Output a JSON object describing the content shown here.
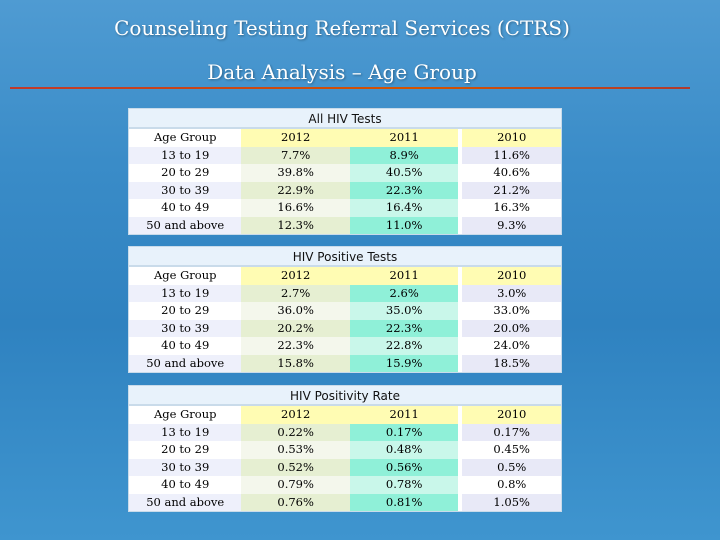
{
  "title_line1": "Counseling Testing Referral Services (CTRS)",
  "title_line2": "Data Analysis – Age Group",
  "tables": [
    {
      "title": "All HIV Tests",
      "headers": [
        "Age Group",
        "2012",
        "2011",
        "2010"
      ],
      "rows": [
        [
          "13 to 19",
          "7.7%",
          "8.9%",
          "11.6%"
        ],
        [
          "20 to 29",
          "39.8%",
          "40.5%",
          "40.6%"
        ],
        [
          "30 to 39",
          "22.9%",
          "22.3%",
          "21.2%"
        ],
        [
          "40 to 49",
          "16.6%",
          "16.4%",
          "16.3%"
        ],
        [
          "50  and above",
          "12.3%",
          "11.0%",
          "9.3%"
        ]
      ]
    },
    {
      "title": "HIV Positive Tests",
      "headers": [
        "Age Group",
        "2012",
        "2011",
        "2010"
      ],
      "rows": [
        [
          "13 to 19",
          "2.7%",
          "2.6%",
          "3.0%"
        ],
        [
          "20 to 29",
          "36.0%",
          "35.0%",
          "33.0%"
        ],
        [
          "30 to 39",
          "20.2%",
          "22.3%",
          "20.0%"
        ],
        [
          "40 to 49",
          "22.3%",
          "22.8%",
          "24.0%"
        ],
        [
          "50  and above",
          "15.8%",
          "15.9%",
          "18.5%"
        ]
      ]
    },
    {
      "title": "HIV Positivity Rate",
      "headers": [
        "Age Group",
        "2012",
        "2011",
        "2010"
      ],
      "rows": [
        [
          "13 to 19",
          "0.22%",
          "0.17%",
          "0.17%"
        ],
        [
          "20 to 29",
          "0.53%",
          "0.48%",
          "0.45%"
        ],
        [
          "30 to 39",
          "0.52%",
          "0.56%",
          "0.5%"
        ],
        [
          "40 to 49",
          "0.79%",
          "0.78%",
          "0.8%"
        ],
        [
          "50  and above",
          "0.76%",
          "0.81%",
          "1.05%"
        ]
      ]
    }
  ]
}
